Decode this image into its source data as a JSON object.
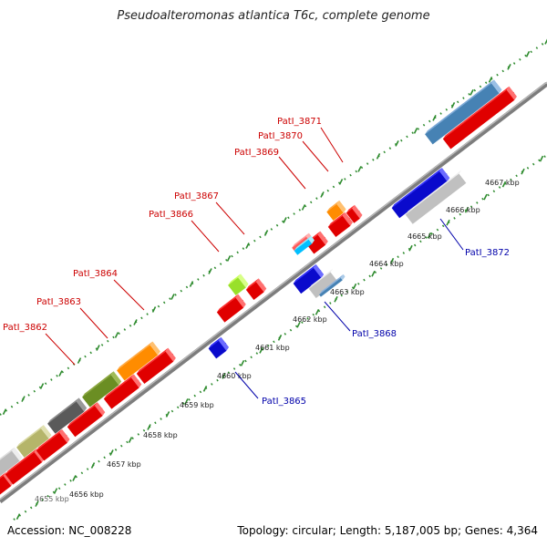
{
  "title": "Pseudoalteromonas atlantica T6c, complete genome",
  "footer": {
    "accession": "Accession: NC_008228",
    "summary": "Topology: circular; Length: 5,187,005 bp; Genes: 4,364"
  },
  "scale_ticks": [
    "4656 kbp",
    "4657 kbp",
    "4658 kbp",
    "4659 kbp",
    "4660 kbp",
    "4661 kbp",
    "4662 kbp",
    "4663 kbp",
    "4664 kbp",
    "4665 kbp",
    "4666 kbp",
    "4667 kbp"
  ],
  "scale_partial": "4655 kbp",
  "gene_labels_forward": [
    "PatI_3862",
    "PatI_3863",
    "PatI_3864",
    "PatI_3866",
    "PatI_3867",
    "PatI_3869",
    "PatI_3870",
    "PatI_3871"
  ],
  "gene_labels_reverse": [
    "PatI_3865",
    "PatI_3868",
    "PatI_3872"
  ],
  "colors": {
    "forward_label": "#cc0000",
    "reverse_label": "#0000aa",
    "cds_red": "#ff1a1a",
    "cds_blue": "#1010e0",
    "backbone": "#888888",
    "grid_dots": "#2e8b2e"
  }
}
